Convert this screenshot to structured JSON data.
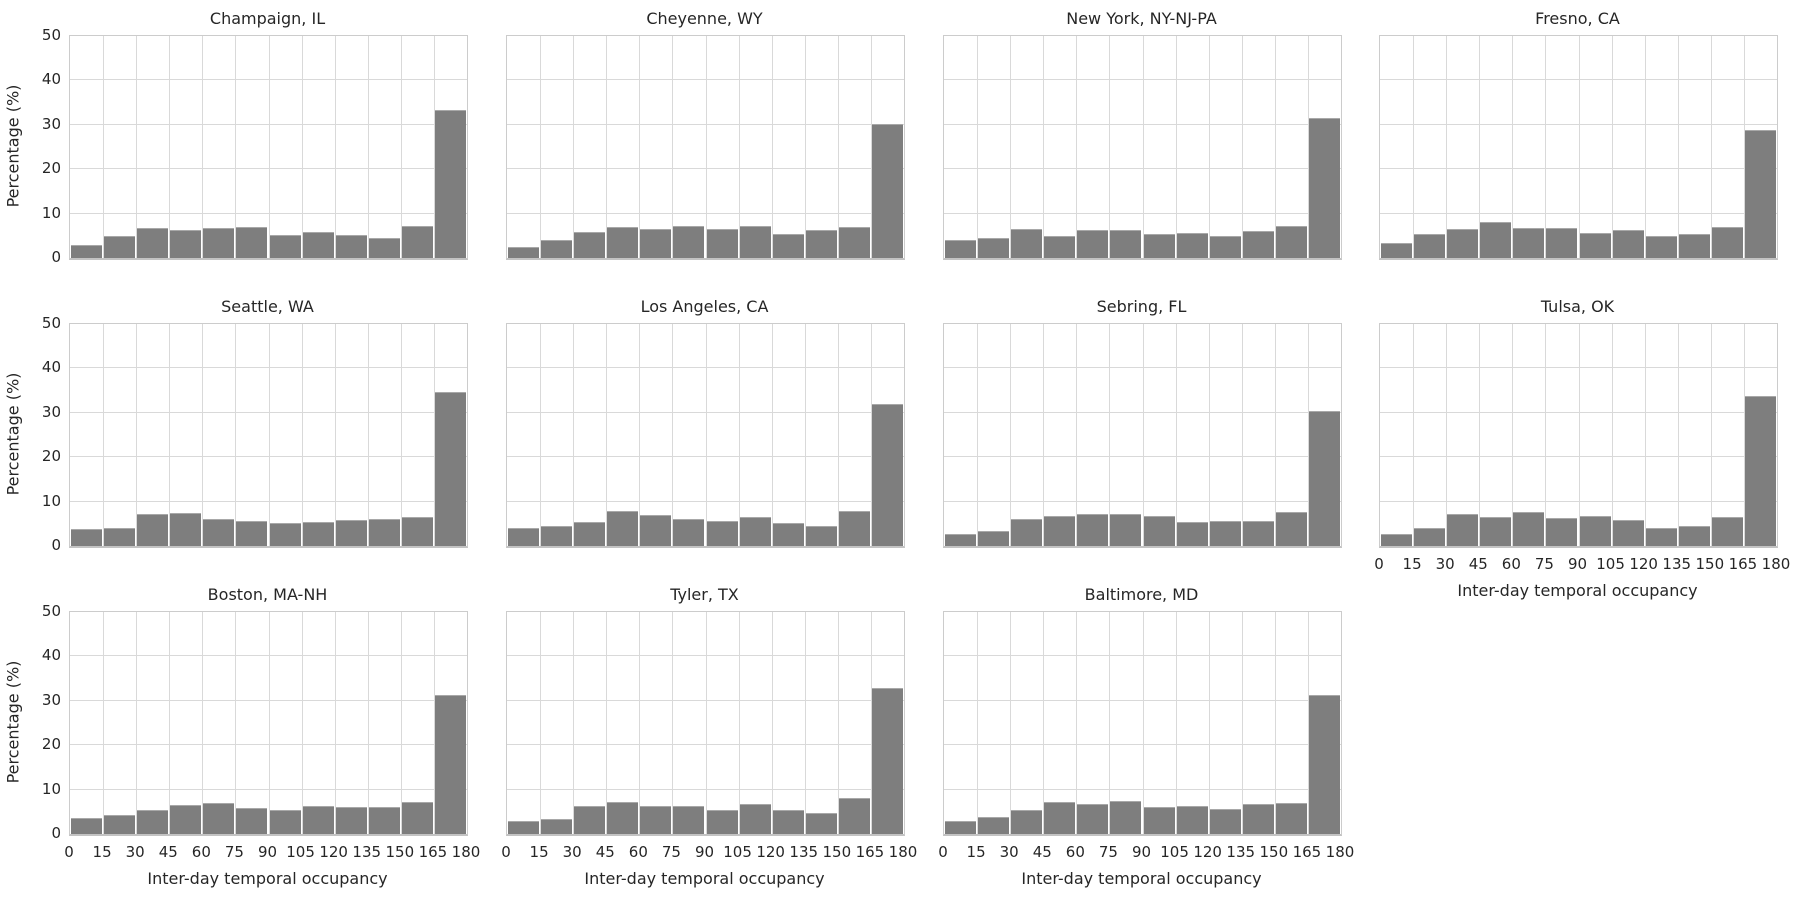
{
  "figure": {
    "ylabel": "Percentage (%)",
    "xlabel": "Inter-day temporal occupancy",
    "yticks": [
      "0",
      "10",
      "20",
      "30",
      "40",
      "50"
    ],
    "xticks": [
      "0",
      "15",
      "30",
      "45",
      "60",
      "75",
      "90",
      "105",
      "120",
      "135",
      "150",
      "165",
      "180"
    ],
    "colors": {
      "bar": "#7e7e7e",
      "bar_edge": "#a8a8a8",
      "grid": "#d9d9d9",
      "spine": "#cccccc",
      "text": "#262626",
      "background": "#ffffff"
    }
  },
  "chart_data": [
    {
      "type": "bar",
      "title": "Champaign, IL",
      "xlabel": "Inter-day temporal occupancy",
      "ylabel": "Percentage (%)",
      "bin_edges": [
        0,
        15,
        30,
        45,
        60,
        75,
        90,
        105,
        120,
        135,
        150,
        165,
        180
      ],
      "values": [
        2.9,
        4.9,
        6.7,
        6.2,
        6.7,
        7.0,
        5.1,
        5.9,
        5.1,
        4.6,
        7.3,
        33.4
      ],
      "ylim": [
        0,
        50
      ],
      "grid": true
    },
    {
      "type": "bar",
      "title": "Cheyenne, WY",
      "xlabel": "Inter-day temporal occupancy",
      "ylabel": "Percentage (%)",
      "bin_edges": [
        0,
        15,
        30,
        45,
        60,
        75,
        90,
        105,
        120,
        135,
        150,
        165,
        180
      ],
      "values": [
        2.4,
        4.1,
        5.9,
        7.0,
        6.6,
        7.2,
        6.6,
        7.3,
        5.3,
        6.3,
        7.0,
        30.1
      ],
      "ylim": [
        0,
        50
      ],
      "grid": true
    },
    {
      "type": "bar",
      "title": "New York, NY-NJ-PA",
      "xlabel": "Inter-day temporal occupancy",
      "ylabel": "Percentage (%)",
      "bin_edges": [
        0,
        15,
        30,
        45,
        60,
        75,
        90,
        105,
        120,
        135,
        150,
        165,
        180
      ],
      "values": [
        4.1,
        4.5,
        6.6,
        4.9,
        6.2,
        6.2,
        5.4,
        5.7,
        4.9,
        6.0,
        7.3,
        31.6
      ],
      "ylim": [
        0,
        50
      ],
      "grid": true
    },
    {
      "type": "bar",
      "title": "Fresno, CA",
      "xlabel": "Inter-day temporal occupancy",
      "ylabel": "Percentage (%)",
      "bin_edges": [
        0,
        15,
        30,
        45,
        60,
        75,
        90,
        105,
        120,
        135,
        150,
        165,
        180
      ],
      "values": [
        3.3,
        5.3,
        6.6,
        8.1,
        6.7,
        6.7,
        5.7,
        6.2,
        5.0,
        5.3,
        7.0,
        28.8
      ],
      "ylim": [
        0,
        50
      ],
      "grid": true
    },
    {
      "type": "bar",
      "title": "Seattle, WA",
      "xlabel": "Inter-day temporal occupancy",
      "ylabel": "Percentage (%)",
      "bin_edges": [
        0,
        15,
        30,
        45,
        60,
        75,
        90,
        105,
        120,
        135,
        150,
        165,
        180
      ],
      "values": [
        3.8,
        4.1,
        7.1,
        7.5,
        6.1,
        5.6,
        5.1,
        5.3,
        5.8,
        6.0,
        6.5,
        34.6
      ],
      "ylim": [
        0,
        50
      ],
      "grid": true
    },
    {
      "type": "bar",
      "title": "Los Angeles, CA",
      "xlabel": "Inter-day temporal occupancy",
      "ylabel": "Percentage (%)",
      "bin_edges": [
        0,
        15,
        30,
        45,
        60,
        75,
        90,
        105,
        120,
        135,
        150,
        165,
        180
      ],
      "values": [
        4.1,
        4.5,
        5.3,
        7.8,
        7.0,
        6.1,
        5.6,
        6.6,
        5.2,
        4.6,
        7.9,
        31.9
      ],
      "ylim": [
        0,
        50
      ],
      "grid": true
    },
    {
      "type": "bar",
      "title": "Sebring, FL",
      "xlabel": "Inter-day temporal occupancy",
      "ylabel": "Percentage (%)",
      "bin_edges": [
        0,
        15,
        30,
        45,
        60,
        75,
        90,
        105,
        120,
        135,
        150,
        165,
        180
      ],
      "values": [
        2.8,
        3.4,
        6.0,
        6.7,
        7.1,
        7.1,
        6.7,
        5.5,
        5.7,
        5.7,
        7.7,
        30.4
      ],
      "ylim": [
        0,
        50
      ],
      "grid": true
    },
    {
      "type": "bar",
      "title": "Tulsa, OK",
      "xlabel": "Inter-day temporal occupancy",
      "ylabel": "Percentage (%)",
      "bin_edges": [
        0,
        15,
        30,
        45,
        60,
        75,
        90,
        105,
        120,
        135,
        150,
        165,
        180
      ],
      "values": [
        2.6,
        4.1,
        7.2,
        6.6,
        7.7,
        6.2,
        6.7,
        5.8,
        4.1,
        4.5,
        6.5,
        33.8
      ],
      "ylim": [
        0,
        50
      ],
      "grid": true
    },
    {
      "type": "bar",
      "title": "Boston, MA-NH",
      "xlabel": "Inter-day temporal occupancy",
      "ylabel": "Percentage (%)",
      "bin_edges": [
        0,
        15,
        30,
        45,
        60,
        75,
        90,
        105,
        120,
        135,
        150,
        165,
        180
      ],
      "values": [
        3.5,
        4.3,
        5.4,
        6.6,
        6.9,
        5.9,
        5.5,
        6.3,
        6.0,
        6.0,
        7.1,
        31.2
      ],
      "ylim": [
        0,
        50
      ],
      "grid": true
    },
    {
      "type": "bar",
      "title": "Tyler, TX",
      "xlabel": "Inter-day temporal occupancy",
      "ylabel": "Percentage (%)",
      "bin_edges": [
        0,
        15,
        30,
        45,
        60,
        75,
        90,
        105,
        120,
        135,
        150,
        165,
        180
      ],
      "values": [
        3.0,
        3.4,
        6.3,
        7.3,
        6.3,
        6.3,
        5.5,
        6.7,
        5.3,
        4.8,
        8.0,
        32.8
      ],
      "ylim": [
        0,
        50
      ],
      "grid": true
    },
    {
      "type": "bar",
      "title": "Baltimore, MD",
      "xlabel": "Inter-day temporal occupancy",
      "ylabel": "Percentage (%)",
      "bin_edges": [
        0,
        15,
        30,
        45,
        60,
        75,
        90,
        105,
        120,
        135,
        150,
        165,
        180
      ],
      "values": [
        3.0,
        3.9,
        5.5,
        7.3,
        6.7,
        7.4,
        6.1,
        6.2,
        5.6,
        6.8,
        6.9,
        31.4
      ],
      "ylim": [
        0,
        50
      ],
      "grid": true
    }
  ]
}
